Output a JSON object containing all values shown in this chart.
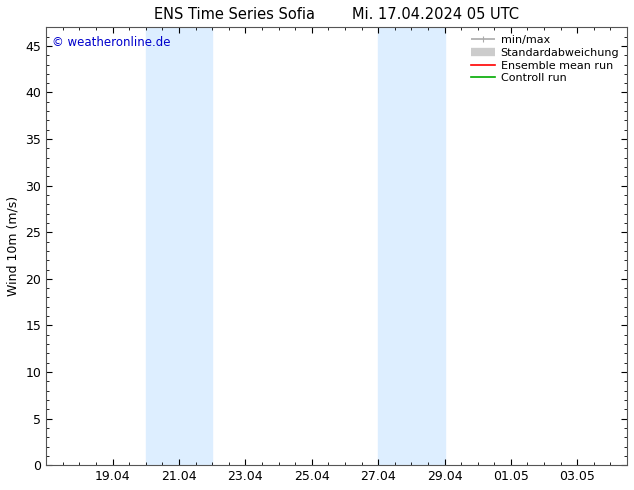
{
  "title": "ENS Time Series Sofia        Mi. 17.04.2024 05 UTC",
  "ylabel": "Wind 10m (m/s)",
  "watermark": "© weatheronline.de",
  "watermark_color": "#0000cc",
  "ylim": [
    0,
    47
  ],
  "yticks": [
    0,
    5,
    10,
    15,
    20,
    25,
    30,
    35,
    40,
    45
  ],
  "xtick_labels": [
    "19.04",
    "21.04",
    "23.04",
    "25.04",
    "27.04",
    "29.04",
    "01.05",
    "03.05"
  ],
  "xtick_vals": [
    2,
    4,
    6,
    8,
    10,
    12,
    14,
    16
  ],
  "x_min": 0.0,
  "x_max": 17.5,
  "shaded_bands": [
    {
      "xstart": 3.0,
      "xend": 5.0
    },
    {
      "xstart": 10.0,
      "xend": 12.0
    }
  ],
  "shaded_color": "#ddeeff",
  "background_color": "#ffffff",
  "legend_items": [
    {
      "label": "min/max",
      "color": "#aaaaaa",
      "lw": 1.2,
      "style": "minmax"
    },
    {
      "label": "Standardabweichung",
      "color": "#cccccc",
      "lw": 6,
      "style": "std"
    },
    {
      "label": "Ensemble mean run",
      "color": "#ff0000",
      "lw": 1.2,
      "style": "line"
    },
    {
      "label": "Controll run",
      "color": "#00aa00",
      "lw": 1.2,
      "style": "line"
    }
  ],
  "axis_color": "#555555",
  "font_size": 9,
  "title_font_size": 10.5,
  "legend_fontsize": 8,
  "watermark_fontsize": 8.5
}
